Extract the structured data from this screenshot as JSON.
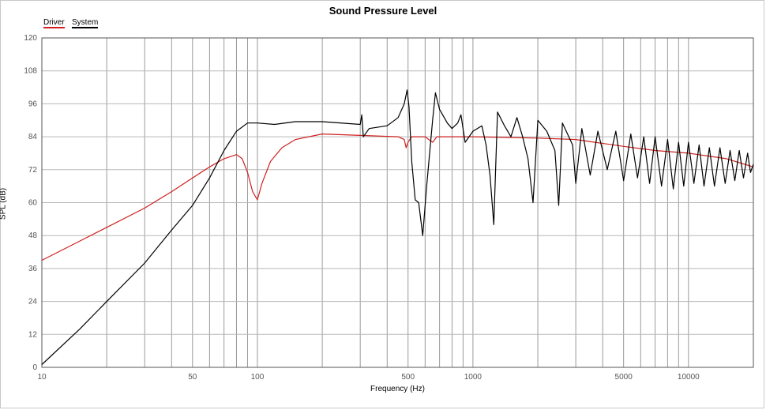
{
  "chart_data": {
    "type": "line",
    "title": "Sound Pressure Level",
    "xlabel": "Frequency (Hz)",
    "ylabel": "SPL (dB)",
    "x_scale": "log",
    "xlim": [
      10,
      20000
    ],
    "ylim": [
      0,
      120
    ],
    "grid": true,
    "legend_position": "top-left",
    "x_tick_labels": [
      {
        "value": 10,
        "label": "10"
      },
      {
        "value": 50,
        "label": "50"
      },
      {
        "value": 100,
        "label": "100"
      },
      {
        "value": 500,
        "label": "500"
      },
      {
        "value": 1000,
        "label": "1000"
      },
      {
        "value": 5000,
        "label": "5000"
      },
      {
        "value": 10000,
        "label": "10000"
      }
    ],
    "y_ticks": [
      0,
      12,
      24,
      36,
      48,
      60,
      72,
      84,
      96,
      108,
      120
    ],
    "series": [
      {
        "name": "Driver",
        "color": "#d02020",
        "points": [
          [
            10,
            39
          ],
          [
            15,
            46
          ],
          [
            20,
            51
          ],
          [
            30,
            58
          ],
          [
            40,
            64
          ],
          [
            50,
            69
          ],
          [
            60,
            73
          ],
          [
            70,
            76
          ],
          [
            80,
            77.5
          ],
          [
            85,
            76
          ],
          [
            90,
            71
          ],
          [
            95,
            64
          ],
          [
            100,
            61
          ],
          [
            105,
            67
          ],
          [
            115,
            75
          ],
          [
            130,
            80
          ],
          [
            150,
            83
          ],
          [
            200,
            85
          ],
          [
            300,
            84.5
          ],
          [
            450,
            84
          ],
          [
            480,
            83
          ],
          [
            490,
            80
          ],
          [
            500,
            82
          ],
          [
            520,
            84
          ],
          [
            600,
            84
          ],
          [
            650,
            82
          ],
          [
            680,
            84
          ],
          [
            1000,
            84
          ],
          [
            2000,
            83.5
          ],
          [
            3000,
            83
          ],
          [
            5000,
            80.5
          ],
          [
            7000,
            79
          ],
          [
            10000,
            78
          ],
          [
            15000,
            76
          ],
          [
            20000,
            73
          ]
        ]
      },
      {
        "name": "System",
        "color": "#000000",
        "points": [
          [
            10,
            1
          ],
          [
            15,
            14
          ],
          [
            20,
            24
          ],
          [
            30,
            38
          ],
          [
            40,
            50
          ],
          [
            50,
            59
          ],
          [
            60,
            69
          ],
          [
            70,
            79
          ],
          [
            80,
            86
          ],
          [
            90,
            89
          ],
          [
            100,
            89
          ],
          [
            120,
            88.5
          ],
          [
            150,
            89.5
          ],
          [
            200,
            89.5
          ],
          [
            300,
            88.5
          ],
          [
            305,
            92
          ],
          [
            310,
            84
          ],
          [
            330,
            87
          ],
          [
            400,
            88
          ],
          [
            450,
            91
          ],
          [
            480,
            96
          ],
          [
            495,
            101
          ],
          [
            505,
            95
          ],
          [
            520,
            75
          ],
          [
            540,
            61
          ],
          [
            560,
            60
          ],
          [
            585,
            48
          ],
          [
            610,
            66
          ],
          [
            650,
            90
          ],
          [
            670,
            100
          ],
          [
            700,
            94
          ],
          [
            760,
            89
          ],
          [
            800,
            87
          ],
          [
            850,
            89
          ],
          [
            880,
            92
          ],
          [
            920,
            82
          ],
          [
            1000,
            86
          ],
          [
            1100,
            88
          ],
          [
            1150,
            81
          ],
          [
            1200,
            70
          ],
          [
            1250,
            52
          ],
          [
            1300,
            93
          ],
          [
            1400,
            88
          ],
          [
            1500,
            84
          ],
          [
            1600,
            91
          ],
          [
            1700,
            84
          ],
          [
            1800,
            76
          ],
          [
            1900,
            60
          ],
          [
            2000,
            90
          ],
          [
            2200,
            86
          ],
          [
            2400,
            79
          ],
          [
            2500,
            59
          ],
          [
            2600,
            89
          ],
          [
            2900,
            81
          ],
          [
            3000,
            67
          ],
          [
            3200,
            87
          ],
          [
            3500,
            70
          ],
          [
            3800,
            86
          ],
          [
            4200,
            72
          ],
          [
            4600,
            86
          ],
          [
            5000,
            68
          ],
          [
            5400,
            85
          ],
          [
            5800,
            69
          ],
          [
            6200,
            84
          ],
          [
            6600,
            67
          ],
          [
            7000,
            84
          ],
          [
            7500,
            66
          ],
          [
            8000,
            83
          ],
          [
            8500,
            65
          ],
          [
            9000,
            82
          ],
          [
            9500,
            66
          ],
          [
            10000,
            82
          ],
          [
            10600,
            67
          ],
          [
            11200,
            81
          ],
          [
            11800,
            66
          ],
          [
            12500,
            80
          ],
          [
            13200,
            66
          ],
          [
            14000,
            80
          ],
          [
            14800,
            67
          ],
          [
            15600,
            79
          ],
          [
            16400,
            68
          ],
          [
            17200,
            79
          ],
          [
            18000,
            69
          ],
          [
            18800,
            78
          ],
          [
            19400,
            71
          ],
          [
            20000,
            74
          ]
        ]
      }
    ]
  }
}
